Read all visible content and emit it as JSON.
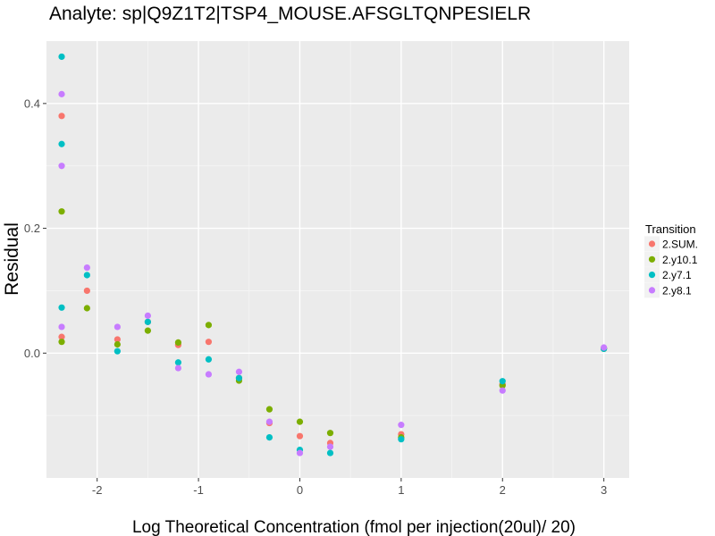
{
  "chart_data": {
    "type": "scatter",
    "title": "Analyte: sp|Q9Z1T2|TSP4_MOUSE.AFSGLTQNPESIELR",
    "xlabel": "Log Theoretical Concentration (fmol per injection(20ul)/ 20)",
    "ylabel": "Residual",
    "xlim": [
      -2.5,
      3.25
    ],
    "ylim": [
      -0.2,
      0.5
    ],
    "x_ticks": [
      -2,
      -1,
      0,
      1,
      2,
      3
    ],
    "y_ticks": [
      0.0,
      0.2,
      0.4
    ],
    "x_tick_labels": [
      "-2",
      "-1",
      "0",
      "1",
      "2",
      "3"
    ],
    "y_tick_labels": [
      "0.0",
      "0.2",
      "0.4"
    ],
    "grid": true,
    "legend_title": "Transition",
    "legend_position": "right",
    "series": [
      {
        "name": "2.SUM.",
        "color": "#F8766D",
        "points": [
          [
            -2.35,
            0.38
          ],
          [
            -2.35,
            0.026
          ],
          [
            -2.1,
            0.1
          ],
          [
            -1.8,
            0.022
          ],
          [
            -1.5,
            0.05
          ],
          [
            -1.2,
            0.013
          ],
          [
            -0.9,
            0.018
          ],
          [
            -0.6,
            -0.04
          ],
          [
            -0.3,
            -0.112
          ],
          [
            0.0,
            -0.133
          ],
          [
            0.3,
            -0.144
          ],
          [
            1.0,
            -0.13
          ],
          [
            2.0,
            -0.05
          ],
          [
            3.0,
            0.008
          ]
        ]
      },
      {
        "name": "2.y10.1",
        "color": "#7CAE00",
        "points": [
          [
            -2.35,
            0.227
          ],
          [
            -2.35,
            0.018
          ],
          [
            -2.1,
            0.072
          ],
          [
            -1.8,
            0.014
          ],
          [
            -1.5,
            0.036
          ],
          [
            -1.2,
            0.017
          ],
          [
            -0.9,
            0.045
          ],
          [
            -0.6,
            -0.044
          ],
          [
            -0.3,
            -0.09
          ],
          [
            0.0,
            -0.11
          ],
          [
            0.3,
            -0.128
          ],
          [
            1.0,
            -0.135
          ],
          [
            2.0,
            -0.052
          ],
          [
            3.0,
            0.007
          ]
        ]
      },
      {
        "name": "2.y7.1",
        "color": "#00BFC4",
        "points": [
          [
            -2.35,
            0.475
          ],
          [
            -2.35,
            0.335
          ],
          [
            -2.35,
            0.073
          ],
          [
            -2.1,
            0.125
          ],
          [
            -1.8,
            0.003
          ],
          [
            -1.5,
            0.05
          ],
          [
            -1.2,
            -0.015
          ],
          [
            -0.9,
            -0.01
          ],
          [
            -0.6,
            -0.04
          ],
          [
            -0.3,
            -0.135
          ],
          [
            0.0,
            -0.155
          ],
          [
            0.3,
            -0.16
          ],
          [
            1.0,
            -0.138
          ],
          [
            2.0,
            -0.045
          ],
          [
            3.0,
            0.007
          ]
        ]
      },
      {
        "name": "2.y8.1",
        "color": "#C77CFF",
        "points": [
          [
            -2.35,
            0.415
          ],
          [
            -2.35,
            0.3
          ],
          [
            -2.35,
            0.042
          ],
          [
            -2.1,
            0.137
          ],
          [
            -1.8,
            0.042
          ],
          [
            -1.5,
            0.06
          ],
          [
            -1.2,
            -0.024
          ],
          [
            -0.9,
            -0.034
          ],
          [
            -0.6,
            -0.03
          ],
          [
            -0.3,
            -0.11
          ],
          [
            0.0,
            -0.16
          ],
          [
            0.3,
            -0.15
          ],
          [
            1.0,
            -0.115
          ],
          [
            2.0,
            -0.06
          ],
          [
            3.0,
            0.009
          ]
        ]
      }
    ]
  }
}
